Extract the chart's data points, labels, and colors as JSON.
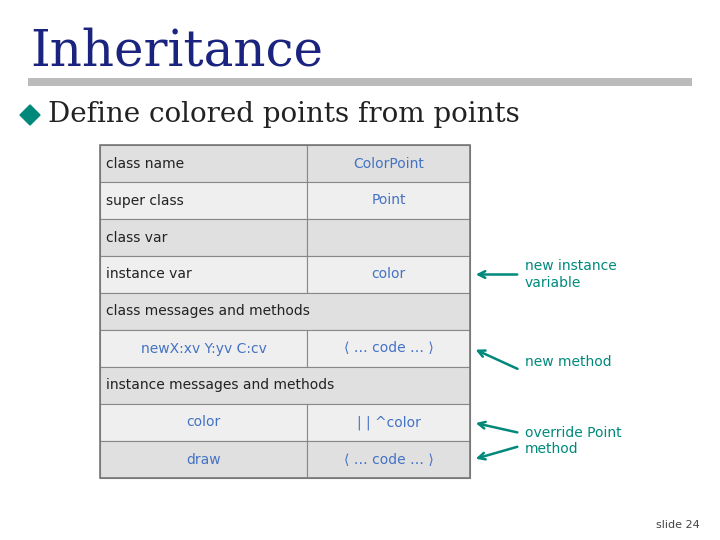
{
  "title": "Inheritance",
  "title_color": "#1A237E",
  "title_fontsize": 36,
  "bullet_text": "Define colored points from points",
  "bullet_color": "#00897B",
  "bullet_fontsize": 20,
  "slide_number": "slide 24",
  "bg_color": "#FFFFFF",
  "separator_color": "#AAAAAA",
  "table_rows": [
    {
      "left": "class name",
      "right": "ColorPoint",
      "left_color": "#222222",
      "right_color": "#4472C4",
      "left_bg": "#E0E0E0",
      "right_bg": "#E0E0E0",
      "span": false
    },
    {
      "left": "super class",
      "right": "Point",
      "left_color": "#222222",
      "right_color": "#4472C4",
      "left_bg": "#EFEFEF",
      "right_bg": "#EFEFEF",
      "span": false
    },
    {
      "left": "class var",
      "right": "",
      "left_color": "#222222",
      "right_color": "#222222",
      "left_bg": "#E0E0E0",
      "right_bg": "#E0E0E0",
      "span": false
    },
    {
      "left": "instance var",
      "right": "color",
      "left_color": "#222222",
      "right_color": "#4472C4",
      "left_bg": "#EFEFEF",
      "right_bg": "#EFEFEF",
      "span": false
    },
    {
      "left": "class messages and methods",
      "right": "",
      "left_color": "#222222",
      "right_color": "#222222",
      "left_bg": "#E0E0E0",
      "right_bg": "#E0E0E0",
      "span": true
    },
    {
      "left": "newX:xv Y:yv C:cv",
      "right": "⟨ … code … ⟩",
      "left_color": "#4472C4",
      "right_color": "#4472C4",
      "left_bg": "#EFEFEF",
      "right_bg": "#EFEFEF",
      "span": false
    },
    {
      "left": "instance messages and methods",
      "right": "",
      "left_color": "#222222",
      "right_color": "#222222",
      "left_bg": "#E0E0E0",
      "right_bg": "#E0E0E0",
      "span": true
    },
    {
      "left": "color",
      "right": "| | ^color",
      "left_color": "#4472C4",
      "right_color": "#4472C4",
      "left_bg": "#EFEFEF",
      "right_bg": "#EFEFEF",
      "span": false
    },
    {
      "left": "draw",
      "right": "⟨ … code … ⟩",
      "left_color": "#4472C4",
      "right_color": "#4472C4",
      "left_bg": "#E0E0E0",
      "right_bg": "#E0E0E0",
      "span": false
    }
  ],
  "col_split": 0.56,
  "annotation_color": "#00897B",
  "ann_fontsize": 10
}
